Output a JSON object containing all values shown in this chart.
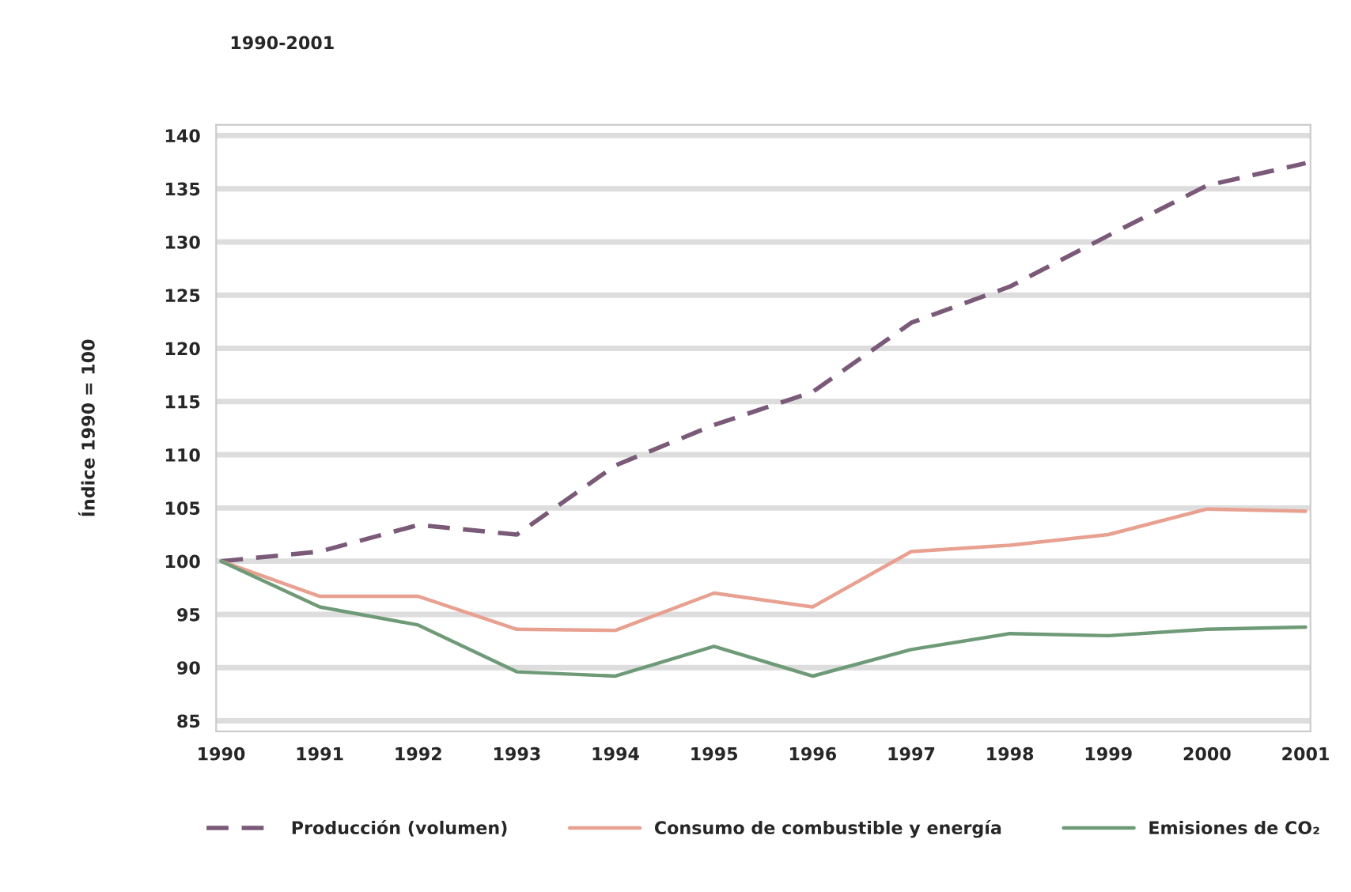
{
  "chart_data": {
    "type": "line",
    "title": "1990-2001",
    "ylabel": "Índice 1990 = 100",
    "categories": [
      "1990",
      "1991",
      "1992",
      "1993",
      "1994",
      "1995",
      "1996",
      "1997",
      "1998",
      "1999",
      "2000",
      "2001"
    ],
    "series": [
      {
        "name": "Producción (volumen)",
        "color": "#7a5a78",
        "line_style": "dashed",
        "values": [
          100,
          100.9,
          103.4,
          102.5,
          109,
          112.8,
          115.9,
          122.4,
          125.8,
          130.6,
          135.3,
          137.4
        ]
      },
      {
        "name": "Consumo de combustible y energía",
        "color": "#e8a090",
        "line_style": "solid",
        "values": [
          100,
          96.7,
          96.7,
          93.6,
          93.5,
          97,
          95.7,
          100.9,
          101.5,
          102.5,
          104.9,
          104.7
        ]
      },
      {
        "name": "Emisiones de CO₂",
        "color": "#6f9a78",
        "line_style": "solid",
        "values": [
          100,
          95.7,
          94,
          89.6,
          89.2,
          92,
          89.2,
          91.7,
          93.2,
          93,
          93.6,
          93.8
        ]
      }
    ],
    "ylim": [
      84,
      141
    ],
    "yticks": [
      85,
      90,
      95,
      100,
      105,
      110,
      115,
      120,
      125,
      130,
      135,
      140
    ],
    "grid": "y",
    "legend": "bottom",
    "marker": "none"
  }
}
